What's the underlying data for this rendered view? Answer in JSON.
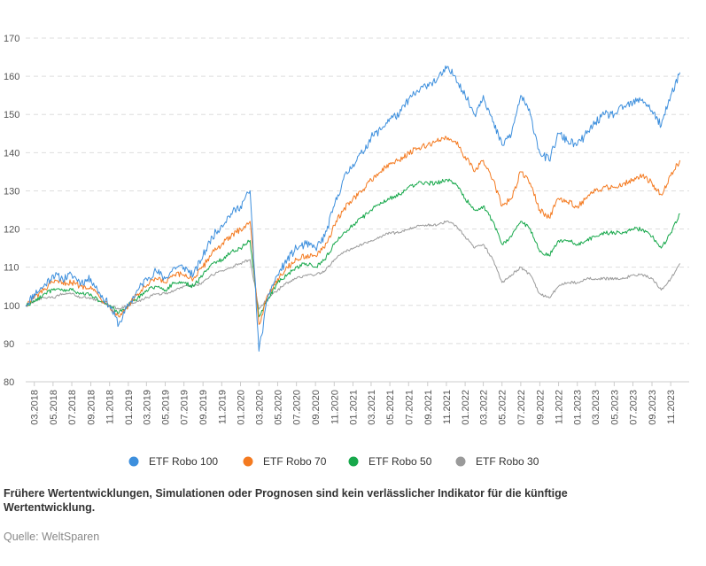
{
  "chart_data": {
    "type": "line",
    "title": "",
    "xlabel": "",
    "ylabel": "",
    "ylim": [
      80,
      170
    ],
    "yticks": [
      80,
      90,
      100,
      110,
      120,
      130,
      140,
      150,
      160,
      170
    ],
    "xlim": [
      "2018-02-01",
      "2023-12-31"
    ],
    "xtick_labels": [
      "03.2018",
      "05.2018",
      "07.2018",
      "09.2018",
      "11.2018",
      "01.2019",
      "03.2019",
      "05.2019",
      "07.2019",
      "09.2019",
      "11.2019",
      "01.2020",
      "03.2020",
      "05.2020",
      "07.2020",
      "09.2020",
      "11.2020",
      "01.2021",
      "03.2021",
      "05.2021",
      "07.2021",
      "09.2021",
      "11.2021",
      "01.2022",
      "03.2022",
      "05.2022",
      "07.2022",
      "09.2022",
      "11.2022",
      "01.2023",
      "03.2023",
      "05.2023",
      "07.2023",
      "09.2023",
      "11.2023"
    ],
    "grid": "horizontal dashed",
    "legend_position": "bottom",
    "colors": [
      "#3d8fdd",
      "#f47a20",
      "#17a84b",
      "#9a9a9a"
    ],
    "x": [
      "2018-02",
      "2018-03",
      "2018-04",
      "2018-05",
      "2018-06",
      "2018-07",
      "2018-08",
      "2018-09",
      "2018-10",
      "2018-11",
      "2018-12",
      "2019-01",
      "2019-02",
      "2019-03",
      "2019-04",
      "2019-05",
      "2019-06",
      "2019-07",
      "2019-08",
      "2019-09",
      "2019-10",
      "2019-11",
      "2019-12",
      "2020-01",
      "2020-02",
      "2020-03",
      "2020-04",
      "2020-05",
      "2020-06",
      "2020-07",
      "2020-08",
      "2020-09",
      "2020-10",
      "2020-11",
      "2020-12",
      "2021-01",
      "2021-02",
      "2021-03",
      "2021-04",
      "2021-05",
      "2021-06",
      "2021-07",
      "2021-08",
      "2021-09",
      "2021-10",
      "2021-11",
      "2021-12",
      "2022-01",
      "2022-02",
      "2022-03",
      "2022-04",
      "2022-05",
      "2022-06",
      "2022-07",
      "2022-08",
      "2022-09",
      "2022-10",
      "2022-11",
      "2022-12",
      "2023-01",
      "2023-02",
      "2023-03",
      "2023-04",
      "2023-05",
      "2023-06",
      "2023-07",
      "2023-08",
      "2023-09",
      "2023-10",
      "2023-11",
      "2023-12"
    ],
    "series": [
      {
        "name": "ETF Robo 100",
        "values": [
          100,
          103,
          105,
          108,
          107,
          108,
          106,
          107,
          103,
          100,
          95,
          100,
          104,
          107,
          109,
          107,
          110,
          110,
          108,
          113,
          118,
          121,
          124,
          126,
          130,
          88,
          103,
          108,
          112,
          115,
          116,
          115,
          118,
          126,
          133,
          137,
          140,
          144,
          146,
          149,
          150,
          154,
          156,
          158,
          159,
          162,
          160,
          155,
          150,
          155,
          148,
          142,
          145,
          155,
          150,
          140,
          138,
          145,
          143,
          142,
          145,
          148,
          150,
          150,
          152,
          153,
          154,
          151,
          147,
          155,
          161
        ]
      },
      {
        "name": "ETF Robo 70",
        "values": [
          100,
          102,
          104,
          106,
          106,
          106,
          105,
          105,
          102,
          100,
          97,
          100,
          103,
          105,
          107,
          106,
          108,
          108,
          107,
          110,
          114,
          116,
          118,
          120,
          122,
          95,
          103,
          107,
          110,
          112,
          113,
          113,
          115,
          121,
          125,
          128,
          130,
          133,
          135,
          137,
          138,
          140,
          141,
          142,
          143,
          144,
          143,
          139,
          135,
          138,
          133,
          126,
          128,
          135,
          132,
          125,
          123,
          128,
          127,
          126,
          128,
          130,
          131,
          131,
          132,
          133,
          134,
          132,
          129,
          134,
          138
        ]
      },
      {
        "name": "ETF Robo 50",
        "values": [
          100,
          101,
          103,
          104,
          104,
          104,
          103,
          103,
          101,
          100,
          98,
          100,
          102,
          104,
          105,
          104,
          106,
          106,
          105,
          108,
          111,
          112,
          114,
          115,
          117,
          97,
          102,
          106,
          108,
          110,
          111,
          110,
          112,
          116,
          119,
          121,
          123,
          125,
          127,
          128,
          129,
          131,
          132,
          132,
          132,
          133,
          132,
          128,
          125,
          126,
          122,
          116,
          118,
          122,
          120,
          114,
          113,
          117,
          117,
          116,
          117,
          118,
          119,
          119,
          119,
          120,
          120,
          118,
          115,
          119,
          124
        ]
      },
      {
        "name": "ETF Robo 30",
        "values": [
          100,
          101,
          102,
          102,
          103,
          103,
          102,
          102,
          101,
          100,
          99,
          100,
          101,
          102,
          103,
          103,
          104,
          105,
          105,
          106,
          108,
          109,
          110,
          111,
          112,
          99,
          102,
          104,
          106,
          107,
          108,
          108,
          109,
          112,
          114,
          115,
          116,
          117,
          118,
          119,
          119,
          120,
          121,
          121,
          121,
          122,
          121,
          118,
          115,
          116,
          112,
          106,
          108,
          110,
          108,
          103,
          102,
          105,
          106,
          106,
          107,
          107,
          107,
          107,
          107,
          108,
          108,
          107,
          104,
          107,
          111
        ]
      }
    ]
  },
  "disclaimer": "Frühere Wertentwicklungen, Simulationen oder Prognosen sind kein verlässlicher Indikator für die künftige Wertentwicklung.",
  "source": "Quelle: WeltSparen"
}
